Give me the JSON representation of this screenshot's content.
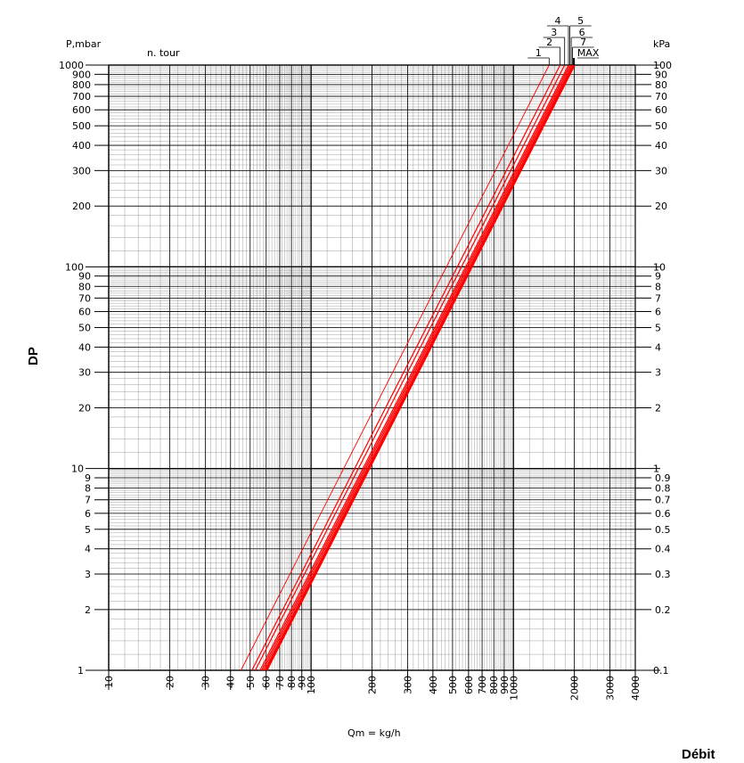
{
  "chart_data": {
    "type": "line",
    "top_caption": "",
    "x_scale": "log",
    "y_scale": "log",
    "xlim": [
      10,
      4000
    ],
    "ylim": [
      1,
      1000
    ],
    "y_left_unit": "P,mbar",
    "y_right_unit": "kPa",
    "x_unit": "Qm = kg/h",
    "y_axis_title": "DP",
    "x_axis_title": "Débit",
    "legend_title": "n. tour",
    "grid": true,
    "x_tick_labels": [
      "10",
      "20",
      "30",
      "40",
      "50",
      "60",
      "70",
      "80",
      "90",
      "100",
      "200",
      "300",
      "400",
      "500",
      "600",
      "700",
      "800",
      "900",
      "1000",
      "2000",
      "3000",
      "4000"
    ],
    "y_left_tick_labels": [
      "1",
      "2",
      "3",
      "4",
      "5",
      "6",
      "7",
      "8",
      "9",
      "10",
      "20",
      "30",
      "40",
      "50",
      "60",
      "70",
      "80",
      "90",
      "100",
      "200",
      "300",
      "400",
      "500",
      "600",
      "700",
      "800",
      "900",
      "1000"
    ],
    "y_right_tick_labels": [
      "0.1",
      "0.2",
      "0.3",
      "0.4",
      "0.5",
      "0.6",
      "0.7",
      "0.8",
      "0.9",
      "1",
      "2",
      "3",
      "4",
      "5",
      "6",
      "7",
      "8",
      "9",
      "10",
      "20",
      "30",
      "40",
      "50",
      "60",
      "70",
      "80",
      "90",
      "100"
    ],
    "series": [
      {
        "name": "1",
        "x": [
          45,
          1500
        ],
        "y": [
          1,
          1000
        ]
      },
      {
        "name": "2",
        "x": [
          51,
          1700
        ],
        "y": [
          1,
          1000
        ]
      },
      {
        "name": "3",
        "x": [
          53,
          1790
        ],
        "y": [
          1,
          1000
        ]
      },
      {
        "name": "4",
        "x": [
          56,
          1870
        ],
        "y": [
          1,
          1000
        ]
      },
      {
        "name": "5",
        "x": [
          57,
          1900
        ],
        "y": [
          1,
          1000
        ]
      },
      {
        "name": "6",
        "x": [
          58,
          1930
        ],
        "y": [
          1,
          1000
        ]
      },
      {
        "name": "7",
        "x": [
          59,
          1960
        ],
        "y": [
          1,
          1000
        ]
      },
      {
        "name": "MAX",
        "x": [
          60,
          1990
        ],
        "y": [
          1,
          1000
        ]
      }
    ],
    "series_color": "#ff0000"
  }
}
